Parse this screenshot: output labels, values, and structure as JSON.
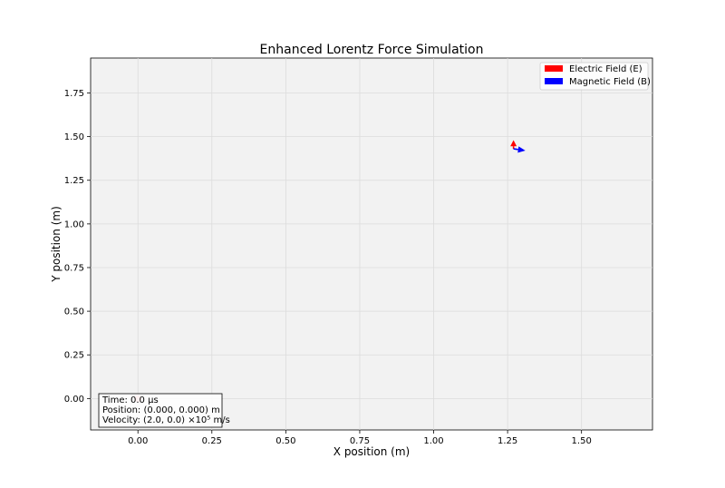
{
  "chart_data": {
    "type": "scatter",
    "title": "Enhanced Lorentz Force Simulation",
    "xlabel": "X position (m)",
    "ylabel": "Y position (m)",
    "xlim": [
      -0.16,
      1.74
    ],
    "ylim": [
      -0.18,
      1.95
    ],
    "xticks": [
      0.0,
      0.25,
      0.5,
      0.75,
      1.0,
      1.25,
      1.5
    ],
    "xtick_labels": [
      "0.00",
      "0.25",
      "0.50",
      "0.75",
      "1.00",
      "1.25",
      "1.50"
    ],
    "yticks": [
      0.0,
      0.25,
      0.5,
      0.75,
      1.0,
      1.25,
      1.5,
      1.75
    ],
    "ytick_labels": [
      "0.00",
      "0.25",
      "0.50",
      "0.75",
      "1.00",
      "1.25",
      "1.50",
      "1.75"
    ],
    "grid": true,
    "legend_position": "top-right",
    "legend": [
      {
        "label": "Electric Field (E)",
        "color": "#ff0000"
      },
      {
        "label": "Magnetic Field (B)",
        "color": "#0000ff"
      }
    ],
    "particle": {
      "x": 0.0,
      "y": 0.0,
      "color": "#ff9a9a"
    },
    "field_origin": {
      "x": 1.27,
      "y": 1.43
    },
    "field_vectors": [
      {
        "name": "E",
        "dx": 0.0,
        "dy": 0.05,
        "color": "#ff0000"
      },
      {
        "name": "B",
        "dx": 0.04,
        "dy": -0.01,
        "color": "#0000ff"
      }
    ],
    "info_box": {
      "lines": [
        "Time: 0.0 μs",
        "Position: (0.000, 0.000) m",
        "Velocity: (2.0, 0.0) ×10⁵ m/s"
      ]
    },
    "colors": {
      "plot_background": "#f2f2f2",
      "grid": "#dcdcdc"
    }
  }
}
